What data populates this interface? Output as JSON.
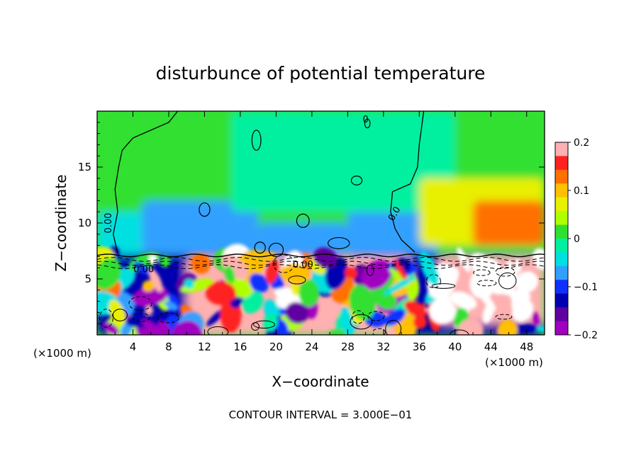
{
  "chart_data": {
    "type": "heatmap",
    "title": "disturbunce of potential temperature",
    "xlabel": "X−coordinate",
    "ylabel": "Z−coordinate",
    "x_unit_left": "(×1000 m)",
    "x_unit_right": "(×1000 m)",
    "xlim": [
      0,
      50
    ],
    "ylim": [
      0,
      20
    ],
    "xticks": [
      4,
      8,
      12,
      16,
      20,
      24,
      28,
      32,
      36,
      40,
      44,
      48
    ],
    "yticks": [
      5,
      10,
      15
    ],
    "colorbar": {
      "vmin": -0.2,
      "vmax": 0.2,
      "ticks": [
        "0.2",
        "0.1",
        "0",
        "−0.1",
        "−0.2"
      ],
      "tick_values": [
        0.2,
        0.1,
        0,
        -0.1,
        -0.2
      ],
      "colors": [
        "#ffb0b0",
        "#ff2020",
        "#ff7000",
        "#ffc000",
        "#e8f000",
        "#b0ff00",
        "#30e030",
        "#00f0a0",
        "#00e0e0",
        "#30a0ff",
        "#1030ff",
        "#0000b0",
        "#6000a0",
        "#a000c0"
      ]
    },
    "contour_labels": [
      "0.00",
      "0.00",
      "0.00",
      "0.0",
      "0"
    ],
    "contour_interval_text": "CONTOUR INTERVAL = 3.000E−01",
    "inversion_height": 7.1,
    "field_regions": [
      {
        "x0": 0,
        "x1": 50,
        "z0": 7.2,
        "z1": 20,
        "value": 0.02
      },
      {
        "x0": 0,
        "x1": 7,
        "z0": 7.2,
        "z1": 11,
        "value": -0.04
      },
      {
        "x0": 5,
        "x1": 18,
        "z0": 7.2,
        "z1": 12,
        "value": -0.08
      },
      {
        "x0": 18,
        "x1": 28,
        "z0": 7.2,
        "z1": 10,
        "value": -0.06
      },
      {
        "x0": 28,
        "x1": 38,
        "z0": 7.2,
        "z1": 11.5,
        "value": -0.06
      },
      {
        "x0": 15,
        "x1": 40,
        "z0": 11,
        "z1": 20,
        "value": -0.02
      },
      {
        "x0": 36,
        "x1": 50,
        "z0": 8,
        "z1": 14,
        "value": 0.06
      },
      {
        "x0": 42,
        "x1": 50,
        "z0": 8,
        "z1": 12,
        "value": 0.14
      },
      {
        "x0": 0,
        "x1": 50,
        "z0": 0,
        "z1": 7.2,
        "value": -0.14
      },
      {
        "x0": 10,
        "x1": 35,
        "z0": 0,
        "z1": 7,
        "value": 0.18
      },
      {
        "x0": 38,
        "x1": 50,
        "z0": 1,
        "z1": 7,
        "value": 0.2
      }
    ]
  }
}
